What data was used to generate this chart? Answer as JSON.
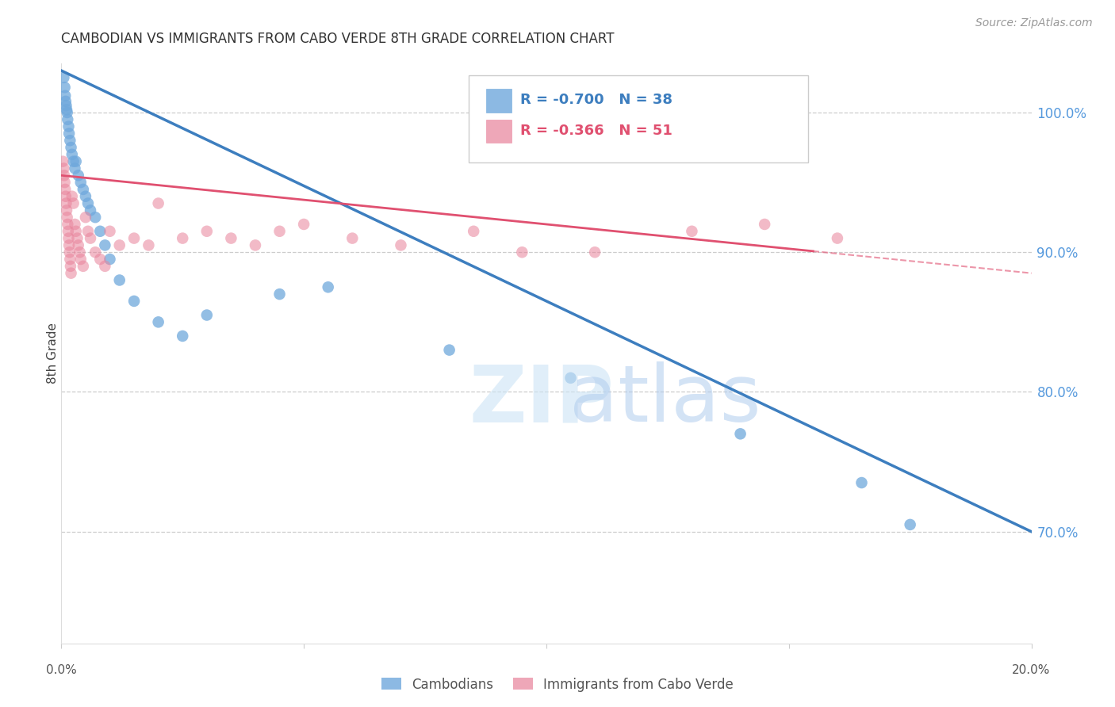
{
  "title": "CAMBODIAN VS IMMIGRANTS FROM CABO VERDE 8TH GRADE CORRELATION CHART",
  "source": "Source: ZipAtlas.com",
  "ylabel": "8th Grade",
  "right_yticks": [
    70.0,
    80.0,
    90.0,
    100.0
  ],
  "blue_label": "Cambodians",
  "pink_label": "Immigrants from Cabo Verde",
  "blue_R": -0.7,
  "blue_N": 38,
  "pink_R": -0.366,
  "pink_N": 51,
  "blue_color": "#6fa8dc",
  "pink_color": "#e8829a",
  "blue_line_color": "#3d7ebf",
  "pink_line_color": "#e05070",
  "background_color": "#ffffff",
  "xlim": [
    0.0,
    20.0
  ],
  "ylim": [
    62.0,
    103.5
  ],
  "blue_intercept": 103.0,
  "blue_slope": -1.65,
  "pink_intercept": 95.5,
  "pink_slope": -0.35,
  "pink_solid_end": 15.5,
  "watermark_zip_color": "#d0e8f8",
  "watermark_atlas_color": "#b8d8f0"
}
